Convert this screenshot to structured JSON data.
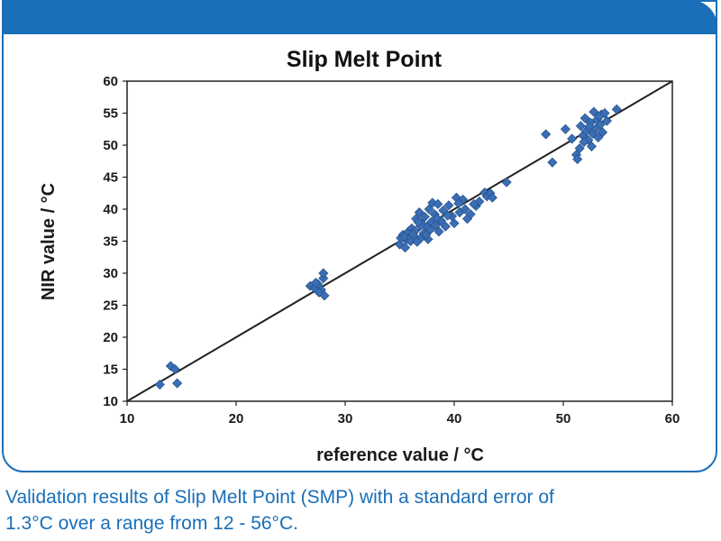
{
  "chart_data": {
    "type": "scatter",
    "title": "Slip Melt Point",
    "xlabel": "reference value / °C",
    "ylabel": "NIR value / °C",
    "xlim": [
      10,
      60
    ],
    "ylim": [
      10,
      60
    ],
    "xticks": [
      10,
      20,
      30,
      40,
      50,
      60
    ],
    "yticks": [
      10,
      15,
      20,
      25,
      30,
      35,
      40,
      45,
      50,
      55,
      60
    ],
    "grid": false,
    "marker_color": "#3a6fb5",
    "line_color": "#222222",
    "reference_line": {
      "x": [
        10,
        60
      ],
      "y": [
        10,
        60
      ]
    },
    "series": [
      {
        "points": [
          [
            13.0,
            12.6
          ],
          [
            14.0,
            15.5
          ],
          [
            14.4,
            15.0
          ],
          [
            14.6,
            12.8
          ],
          [
            26.8,
            28.0
          ],
          [
            27.2,
            27.7
          ],
          [
            27.5,
            28.3
          ],
          [
            27.8,
            27.4
          ],
          [
            28.0,
            29.2
          ],
          [
            28.1,
            26.5
          ],
          [
            28.0,
            30.0
          ],
          [
            27.6,
            27.0
          ],
          [
            27.3,
            28.5
          ],
          [
            35.0,
            34.5
          ],
          [
            35.1,
            35.5
          ],
          [
            35.3,
            36.0
          ],
          [
            35.5,
            34.0
          ],
          [
            35.6,
            35.2
          ],
          [
            35.8,
            36.5
          ],
          [
            36.0,
            35.0
          ],
          [
            36.1,
            37.0
          ],
          [
            36.3,
            35.8
          ],
          [
            36.4,
            36.6
          ],
          [
            36.5,
            38.5
          ],
          [
            36.6,
            34.9
          ],
          [
            36.8,
            39.5
          ],
          [
            37.0,
            37.8
          ],
          [
            37.0,
            35.6
          ],
          [
            37.2,
            36.2
          ],
          [
            37.3,
            38.8
          ],
          [
            37.5,
            37.2
          ],
          [
            37.6,
            35.3
          ],
          [
            37.8,
            36.8
          ],
          [
            37.9,
            38.0
          ],
          [
            38.0,
            41.0
          ],
          [
            38.2,
            39.2
          ],
          [
            38.3,
            37.5
          ],
          [
            38.5,
            40.8
          ],
          [
            38.6,
            36.5
          ],
          [
            38.8,
            38.2
          ],
          [
            39.0,
            39.8
          ],
          [
            39.2,
            37.3
          ],
          [
            39.5,
            40.6
          ],
          [
            39.8,
            38.9
          ],
          [
            40.0,
            37.8
          ],
          [
            40.2,
            41.8
          ],
          [
            40.5,
            39.5
          ],
          [
            40.8,
            41.5
          ],
          [
            41.0,
            40.0
          ],
          [
            41.2,
            38.5
          ],
          [
            41.5,
            39.2
          ],
          [
            42.0,
            40.5
          ],
          [
            42.3,
            41.2
          ],
          [
            42.8,
            42.6
          ],
          [
            43.0,
            42.0
          ],
          [
            43.3,
            42.5
          ],
          [
            43.5,
            41.8
          ],
          [
            44.8,
            44.2
          ],
          [
            35.4,
            35.7
          ],
          [
            36.2,
            36.1
          ],
          [
            36.9,
            37.4
          ],
          [
            37.4,
            36.0
          ],
          [
            38.4,
            38.6
          ],
          [
            39.4,
            39.0
          ],
          [
            40.4,
            40.9
          ],
          [
            41.8,
            40.8
          ],
          [
            36.7,
            38.0
          ],
          [
            37.7,
            40.0
          ],
          [
            48.4,
            51.7
          ],
          [
            49.0,
            47.3
          ],
          [
            50.2,
            52.5
          ],
          [
            50.8,
            51.0
          ],
          [
            51.2,
            48.5
          ],
          [
            51.3,
            47.8
          ],
          [
            51.5,
            49.5
          ],
          [
            51.6,
            53.0
          ],
          [
            51.8,
            51.5
          ],
          [
            52.0,
            54.2
          ],
          [
            52.1,
            52.2
          ],
          [
            52.3,
            50.8
          ],
          [
            52.5,
            53.5
          ],
          [
            52.6,
            49.8
          ],
          [
            52.7,
            51.8
          ],
          [
            52.8,
            55.2
          ],
          [
            53.0,
            52.6
          ],
          [
            53.1,
            54.0
          ],
          [
            53.2,
            51.2
          ],
          [
            53.4,
            53.2
          ],
          [
            53.5,
            54.8
          ],
          [
            53.6,
            52.0
          ],
          [
            53.8,
            55.0
          ],
          [
            54.0,
            53.8
          ],
          [
            53.3,
            54.5
          ],
          [
            52.4,
            52.9
          ],
          [
            51.9,
            50.5
          ],
          [
            54.9,
            55.6
          ]
        ]
      }
    ]
  },
  "caption": {
    "line1": "Validation results of Slip Melt Point (SMP) with a standard error of",
    "line2": "1.3°C over a range from 12 - 56°C."
  },
  "theme": {
    "brand_color": "#1a6fb8"
  }
}
